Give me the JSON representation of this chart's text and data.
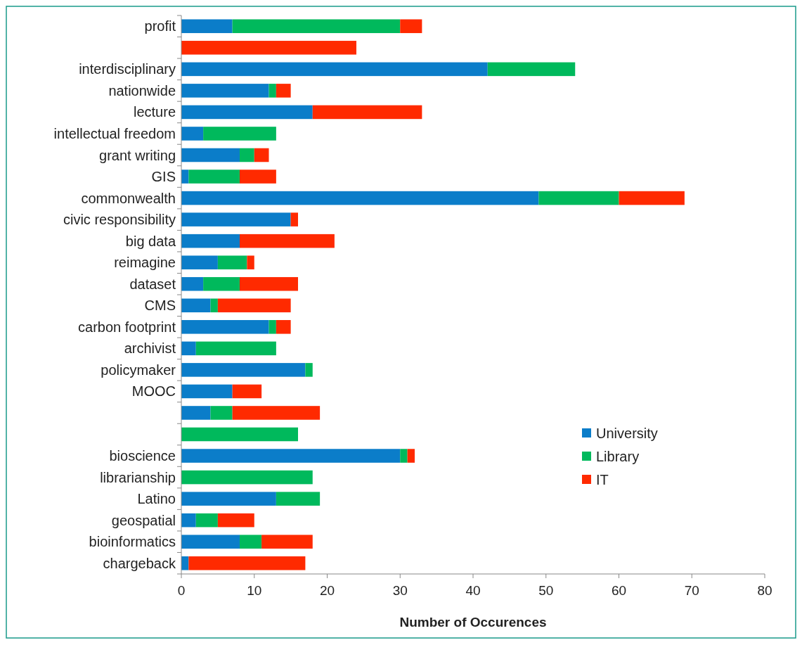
{
  "chart_data": {
    "type": "bar",
    "orientation": "horizontal",
    "stacked": true,
    "xlabel": "Number of Occurences",
    "categories": [
      "profit",
      null,
      "interdisciplinary",
      "nationwide",
      "lecture",
      "intellectual freedom",
      "grant writing",
      "GIS",
      "commonwealth",
      "civic responsibility",
      "big data",
      "reimagine",
      "dataset",
      "CMS",
      "carbon footprint",
      "archivist",
      "policymaker",
      "MOOC",
      null,
      null,
      "bioscience",
      "librarianship",
      "Latino",
      "geospatial",
      "bioinformatics",
      "chargeback"
    ],
    "series": [
      {
        "name": "University",
        "color": "#0b7dc9",
        "values": [
          7,
          0,
          42,
          12,
          18,
          3,
          8,
          1,
          49,
          15,
          8,
          5,
          3,
          4,
          12,
          2,
          17,
          7,
          4,
          0,
          30,
          0,
          13,
          2,
          8,
          1
        ]
      },
      {
        "name": "Library",
        "color": "#00b95c",
        "values": [
          23,
          0,
          12,
          1,
          0,
          10,
          2,
          7,
          11,
          0,
          0,
          4,
          5,
          1,
          1,
          11,
          1,
          0,
          3,
          16,
          1,
          18,
          6,
          3,
          3,
          0
        ]
      },
      {
        "name": "IT",
        "color": "#ff2a00",
        "values": [
          3,
          24,
          0,
          2,
          15,
          0,
          2,
          5,
          9,
          1,
          13,
          1,
          8,
          10,
          2,
          0,
          0,
          4,
          12,
          0,
          1,
          0,
          0,
          5,
          7,
          16
        ]
      }
    ],
    "xlim": [
      0,
      80
    ],
    "xticks": [
      0,
      10,
      20,
      30,
      40,
      50,
      60,
      70,
      80
    ],
    "legend": "bottom right"
  }
}
